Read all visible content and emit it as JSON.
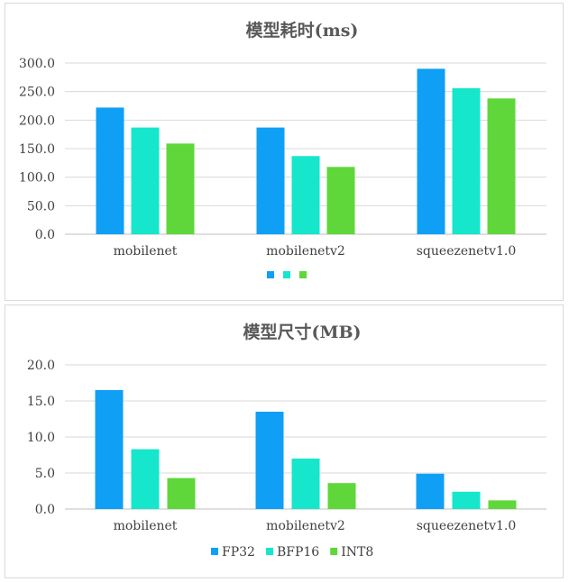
{
  "chart_data": [
    {
      "type": "bar",
      "title": "模型耗时(ms)",
      "categories": [
        "mobilenet",
        "mobilenetv2",
        "squeezenetv1.0"
      ],
      "series": [
        {
          "values": [
            222,
            187,
            290
          ],
          "color": "#0f9ff5"
        },
        {
          "values": [
            187,
            137,
            256
          ],
          "color": "#16e6cc"
        },
        {
          "values": [
            159,
            118,
            238
          ],
          "color": "#5fd73a"
        }
      ],
      "ylim": [
        0,
        300
      ],
      "yticks": [
        "0.0",
        "50.0",
        "100.0",
        "150.0",
        "200.0",
        "250.0",
        "300.0"
      ],
      "grid": true,
      "legend": "bottom"
    },
    {
      "type": "bar",
      "title": "模型尺寸(MB)",
      "categories": [
        "mobilenet",
        "mobilenetv2",
        "squeezenetv1.0"
      ],
      "series": [
        {
          "name": "FP32",
          "values": [
            16.5,
            13.5,
            4.9
          ],
          "color": "#0f9ff5"
        },
        {
          "name": "BFP16",
          "values": [
            8.3,
            7.0,
            2.4
          ],
          "color": "#16e6cc"
        },
        {
          "name": "INT8",
          "values": [
            4.3,
            3.6,
            1.2
          ],
          "color": "#5fd73a"
        }
      ],
      "ylim": [
        0,
        20
      ],
      "yticks": [
        "0.0",
        "5.0",
        "10.0",
        "15.0",
        "20.0"
      ],
      "grid": true,
      "legend": "bottom"
    }
  ]
}
